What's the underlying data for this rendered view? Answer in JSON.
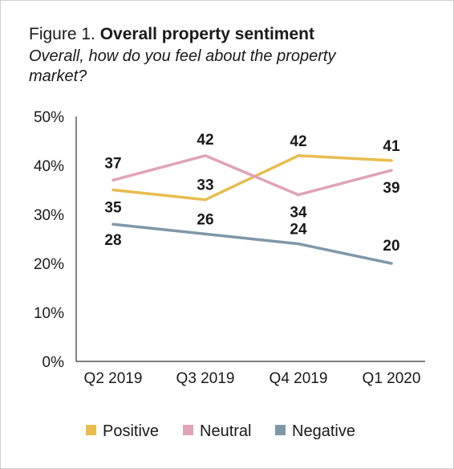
{
  "figure": {
    "label": "Figure 1.",
    "title": "Overall property sentiment",
    "subtitle": "Overall, how do you feel about the property market?"
  },
  "chart_data": {
    "type": "line",
    "categories": [
      "Q2 2019",
      "Q3 2019",
      "Q4 2019",
      "Q1 2020"
    ],
    "ylim": [
      0,
      50
    ],
    "yticks": [
      "0%",
      "10%",
      "20%",
      "30%",
      "40%",
      "50%"
    ],
    "grid": false,
    "legend_position": "bottom",
    "series": [
      {
        "name": "Positive",
        "color": "#e8bd4f",
        "values": [
          35,
          33,
          42,
          41
        ],
        "labels": [
          "35",
          "33",
          "42",
          "41"
        ]
      },
      {
        "name": "Neutral",
        "color": "#e0a3b7",
        "values": [
          37,
          42,
          34,
          39
        ],
        "labels": [
          "37",
          "42",
          "34",
          "39"
        ]
      },
      {
        "name": "Negative",
        "color": "#7f98a8",
        "values": [
          28,
          26,
          24,
          20
        ],
        "labels": [
          "28",
          "26",
          "24",
          "20"
        ]
      }
    ]
  }
}
